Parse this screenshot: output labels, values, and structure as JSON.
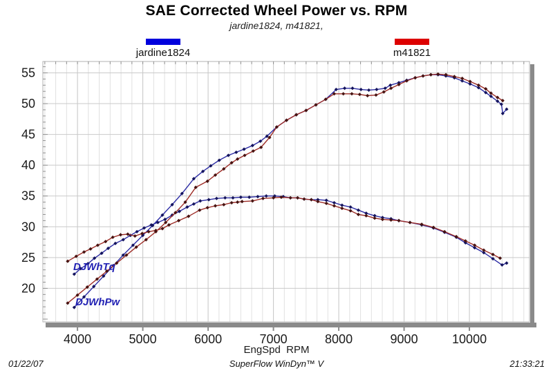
{
  "header": {
    "title": "SAE Corrected Wheel Power vs. RPM",
    "subtitle": "jardine1824, m41821,"
  },
  "legend": {
    "items": [
      {
        "label": "jardine1824",
        "color": "#0000dd"
      },
      {
        "label": "m41821",
        "color": "#dd0000"
      }
    ]
  },
  "footer": {
    "date": "01/22/07",
    "center": "SuperFlow WinDyn™ V",
    "time": "21:33:21"
  },
  "chart_data": {
    "type": "line",
    "title": "SAE Corrected Wheel Power vs. RPM",
    "subtitle": "jardine1824, m41821,",
    "xlabel": "EngSpd  RPM",
    "ylabel": "",
    "xlim": [
      3470,
      10920
    ],
    "ylim": [
      14.55,
      56.85
    ],
    "x_ticks": [
      4000,
      5000,
      6000,
      7000,
      8000,
      9000,
      10000
    ],
    "y_ticks": [
      20,
      25,
      30,
      35,
      40,
      45,
      50,
      55
    ],
    "x_minor_step": 166.667,
    "grid": true,
    "legend_position": "top",
    "curve_labels": {
      "torque": "DJWhTq",
      "power": "DJWhPw"
    },
    "colors": {
      "grid_minor": "#e0e0e0",
      "grid_major": "#c9c9c9",
      "border": "#b2b2b2",
      "shadow_bar": "#8a8a8a",
      "tick": "#909090",
      "tick_label": "#1a1a1a"
    },
    "series": [
      {
        "key": "jardine1824-torque",
        "name": "jardine1824 DJWhTq (wheel torque)",
        "run": "jardine1824",
        "channel": "DJWhTq",
        "line_color": "#2b2ba4",
        "marker_color": "#14145c",
        "points": [
          [
            3950,
            22.3
          ],
          [
            4050,
            23.2
          ],
          [
            4160,
            24.0
          ],
          [
            4260,
            24.9
          ],
          [
            4370,
            25.7
          ],
          [
            4470,
            26.5
          ],
          [
            4580,
            27.3
          ],
          [
            4700,
            27.9
          ],
          [
            4810,
            28.6
          ],
          [
            4910,
            29.2
          ],
          [
            5020,
            29.8
          ],
          [
            5130,
            30.3
          ],
          [
            5230,
            30.7
          ],
          [
            5340,
            31.2
          ],
          [
            5450,
            31.9
          ],
          [
            5560,
            32.5
          ],
          [
            5680,
            33.2
          ],
          [
            5780,
            33.7
          ],
          [
            5880,
            34.2
          ],
          [
            6010,
            34.4
          ],
          [
            6130,
            34.6
          ],
          [
            6260,
            34.7
          ],
          [
            6380,
            34.7
          ],
          [
            6500,
            34.8
          ],
          [
            6630,
            34.8
          ],
          [
            6760,
            34.9
          ],
          [
            6890,
            35.0
          ],
          [
            7020,
            35.0
          ],
          [
            7150,
            34.9
          ],
          [
            7260,
            34.7
          ],
          [
            7370,
            34.7
          ],
          [
            7470,
            34.5
          ],
          [
            7580,
            34.4
          ],
          [
            7680,
            34.4
          ],
          [
            7810,
            34.3
          ],
          [
            7930,
            33.9
          ],
          [
            8050,
            33.5
          ],
          [
            8180,
            33.2
          ],
          [
            8300,
            32.7
          ],
          [
            8420,
            32.2
          ],
          [
            8550,
            31.8
          ],
          [
            8670,
            31.5
          ],
          [
            8800,
            31.3
          ],
          [
            8920,
            31.0
          ],
          [
            9090,
            30.7
          ],
          [
            9270,
            30.3
          ],
          [
            9450,
            29.8
          ],
          [
            9620,
            29.1
          ],
          [
            9800,
            28.3
          ],
          [
            9940,
            27.4
          ],
          [
            10080,
            26.6
          ],
          [
            10220,
            25.8
          ],
          [
            10360,
            24.8
          ],
          [
            10500,
            23.8
          ],
          [
            10570,
            24.1
          ]
        ]
      },
      {
        "key": "jardine1824-power",
        "name": "jardine1824 DJWhPw (wheel power)",
        "run": "jardine1824",
        "channel": "DJWhPw",
        "line_color": "#2b2ba4",
        "marker_color": "#14145c",
        "points": [
          [
            3950,
            16.9
          ],
          [
            4100,
            18.6
          ],
          [
            4250,
            20.3
          ],
          [
            4400,
            22.0
          ],
          [
            4550,
            23.7
          ],
          [
            4700,
            25.4
          ],
          [
            4850,
            27.0
          ],
          [
            5000,
            28.6
          ],
          [
            5150,
            30.2
          ],
          [
            5300,
            31.9
          ],
          [
            5450,
            33.6
          ],
          [
            5600,
            35.4
          ],
          [
            5780,
            37.8
          ],
          [
            5920,
            39.0
          ],
          [
            6040,
            39.9
          ],
          [
            6170,
            40.8
          ],
          [
            6310,
            41.6
          ],
          [
            6430,
            42.1
          ],
          [
            6550,
            42.6
          ],
          [
            6680,
            43.2
          ],
          [
            6800,
            43.9
          ],
          [
            6900,
            44.7
          ],
          [
            7050,
            46.2
          ],
          [
            7200,
            47.3
          ],
          [
            7350,
            48.2
          ],
          [
            7500,
            48.9
          ],
          [
            7650,
            49.8
          ],
          [
            7800,
            50.7
          ],
          [
            7960,
            52.3
          ],
          [
            8090,
            52.5
          ],
          [
            8210,
            52.5
          ],
          [
            8340,
            52.3
          ],
          [
            8460,
            52.2
          ],
          [
            8580,
            52.3
          ],
          [
            8710,
            52.5
          ],
          [
            8790,
            53.0
          ],
          [
            8920,
            53.4
          ],
          [
            9040,
            53.8
          ],
          [
            9170,
            54.2
          ],
          [
            9290,
            54.5
          ],
          [
            9410,
            54.7
          ],
          [
            9520,
            54.7
          ],
          [
            9640,
            54.5
          ],
          [
            9770,
            54.2
          ],
          [
            9890,
            53.7
          ],
          [
            10010,
            53.2
          ],
          [
            10140,
            52.6
          ],
          [
            10250,
            51.8
          ],
          [
            10330,
            51.2
          ],
          [
            10430,
            50.4
          ],
          [
            10490,
            49.9
          ],
          [
            10510,
            48.4
          ],
          [
            10570,
            49.1
          ]
        ]
      },
      {
        "key": "m41821-torque",
        "name": "m41821 DJWhTq (wheel torque)",
        "run": "m41821",
        "channel": "DJWhTq",
        "line_color": "#9e2c26",
        "marker_color": "#471311",
        "points": [
          [
            3850,
            24.4
          ],
          [
            3980,
            25.2
          ],
          [
            4100,
            25.9
          ],
          [
            4200,
            26.4
          ],
          [
            4310,
            27.0
          ],
          [
            4430,
            27.6
          ],
          [
            4540,
            28.3
          ],
          [
            4660,
            28.7
          ],
          [
            4770,
            28.8
          ],
          [
            4880,
            28.5
          ],
          [
            4990,
            28.9
          ],
          [
            5090,
            29.2
          ],
          [
            5200,
            29.4
          ],
          [
            5300,
            29.7
          ],
          [
            5400,
            30.3
          ],
          [
            5550,
            31.0
          ],
          [
            5700,
            31.7
          ],
          [
            5870,
            32.7
          ],
          [
            5990,
            33.1
          ],
          [
            6110,
            33.4
          ],
          [
            6240,
            33.6
          ],
          [
            6360,
            33.9
          ],
          [
            6450,
            34.0
          ],
          [
            6520,
            34.1
          ],
          [
            6680,
            34.2
          ],
          [
            6840,
            34.6
          ],
          [
            7000,
            34.7
          ],
          [
            7120,
            34.8
          ],
          [
            7260,
            34.7
          ],
          [
            7370,
            34.7
          ],
          [
            7470,
            34.5
          ],
          [
            7580,
            34.4
          ],
          [
            7680,
            34.1
          ],
          [
            7810,
            33.8
          ],
          [
            7930,
            33.4
          ],
          [
            8050,
            33.0
          ],
          [
            8180,
            32.6
          ],
          [
            8300,
            32.0
          ],
          [
            8420,
            31.8
          ],
          [
            8550,
            31.4
          ],
          [
            8670,
            31.2
          ],
          [
            8800,
            31.1
          ],
          [
            8920,
            31.0
          ],
          [
            9090,
            30.7
          ],
          [
            9270,
            30.4
          ],
          [
            9450,
            29.9
          ],
          [
            9620,
            29.2
          ],
          [
            9800,
            28.4
          ],
          [
            9940,
            27.7
          ],
          [
            10080,
            27.0
          ],
          [
            10220,
            26.2
          ],
          [
            10360,
            25.5
          ],
          [
            10470,
            24.9
          ]
        ]
      },
      {
        "key": "m41821-power",
        "name": "m41821 DJWhPw (wheel power)",
        "run": "m41821",
        "channel": "DJWhPw",
        "line_color": "#9e2c26",
        "marker_color": "#471311",
        "points": [
          [
            3850,
            17.6
          ],
          [
            4000,
            18.9
          ],
          [
            4150,
            20.2
          ],
          [
            4300,
            21.5
          ],
          [
            4450,
            22.8
          ],
          [
            4600,
            24.1
          ],
          [
            4750,
            25.4
          ],
          [
            4900,
            26.7
          ],
          [
            5050,
            27.9
          ],
          [
            5200,
            29.2
          ],
          [
            5350,
            30.7
          ],
          [
            5500,
            32.3
          ],
          [
            5650,
            34.0
          ],
          [
            5810,
            36.4
          ],
          [
            5990,
            37.4
          ],
          [
            6110,
            38.4
          ],
          [
            6240,
            39.4
          ],
          [
            6360,
            40.4
          ],
          [
            6450,
            41.0
          ],
          [
            6560,
            41.6
          ],
          [
            6690,
            42.3
          ],
          [
            6810,
            42.9
          ],
          [
            6940,
            44.5
          ],
          [
            7050,
            46.2
          ],
          [
            7200,
            47.3
          ],
          [
            7350,
            48.2
          ],
          [
            7500,
            48.9
          ],
          [
            7650,
            49.8
          ],
          [
            7800,
            50.7
          ],
          [
            7930,
            51.6
          ],
          [
            8070,
            51.6
          ],
          [
            8200,
            51.6
          ],
          [
            8320,
            51.5
          ],
          [
            8440,
            51.3
          ],
          [
            8570,
            51.4
          ],
          [
            8690,
            51.9
          ],
          [
            8800,
            52.5
          ],
          [
            8920,
            53.1
          ],
          [
            9040,
            53.7
          ],
          [
            9170,
            54.2
          ],
          [
            9290,
            54.5
          ],
          [
            9410,
            54.7
          ],
          [
            9520,
            54.8
          ],
          [
            9640,
            54.7
          ],
          [
            9770,
            54.4
          ],
          [
            9890,
            54.1
          ],
          [
            10010,
            53.6
          ],
          [
            10140,
            53.0
          ],
          [
            10250,
            52.4
          ],
          [
            10330,
            51.7
          ],
          [
            10430,
            51.0
          ],
          [
            10510,
            50.5
          ]
        ]
      }
    ]
  }
}
